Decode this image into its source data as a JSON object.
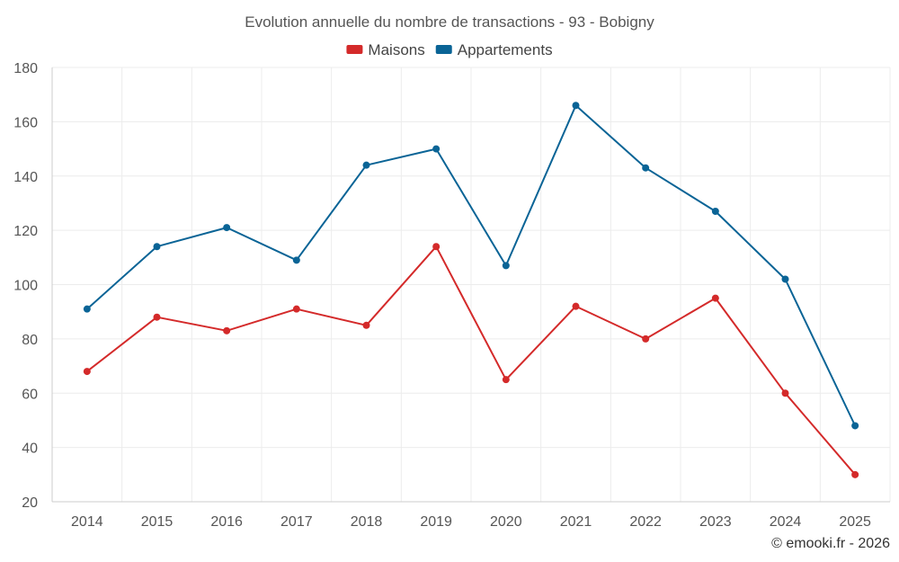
{
  "chart_data": {
    "type": "line",
    "title": "Evolution annuelle du nombre de transactions - 93 - Bobigny",
    "categories": [
      "2014",
      "2015",
      "2016",
      "2017",
      "2018",
      "2019",
      "2020",
      "2021",
      "2022",
      "2023",
      "2024",
      "2025"
    ],
    "series": [
      {
        "name": "Maisons",
        "color": "#d42a2a",
        "values": [
          68,
          88,
          83,
          91,
          85,
          114,
          65,
          92,
          80,
          95,
          60,
          30
        ]
      },
      {
        "name": "Appartements",
        "color": "#0a6496",
        "values": [
          91,
          114,
          121,
          109,
          144,
          150,
          107,
          166,
          143,
          127,
          102,
          48
        ]
      }
    ],
    "ylim": [
      20,
      180
    ],
    "yticks": [
      20,
      40,
      60,
      80,
      100,
      120,
      140,
      160,
      180
    ],
    "legend_position": "top-center",
    "grid": true,
    "xlabel": "",
    "ylabel": ""
  },
  "credit": "© emooki.fr - 2026"
}
